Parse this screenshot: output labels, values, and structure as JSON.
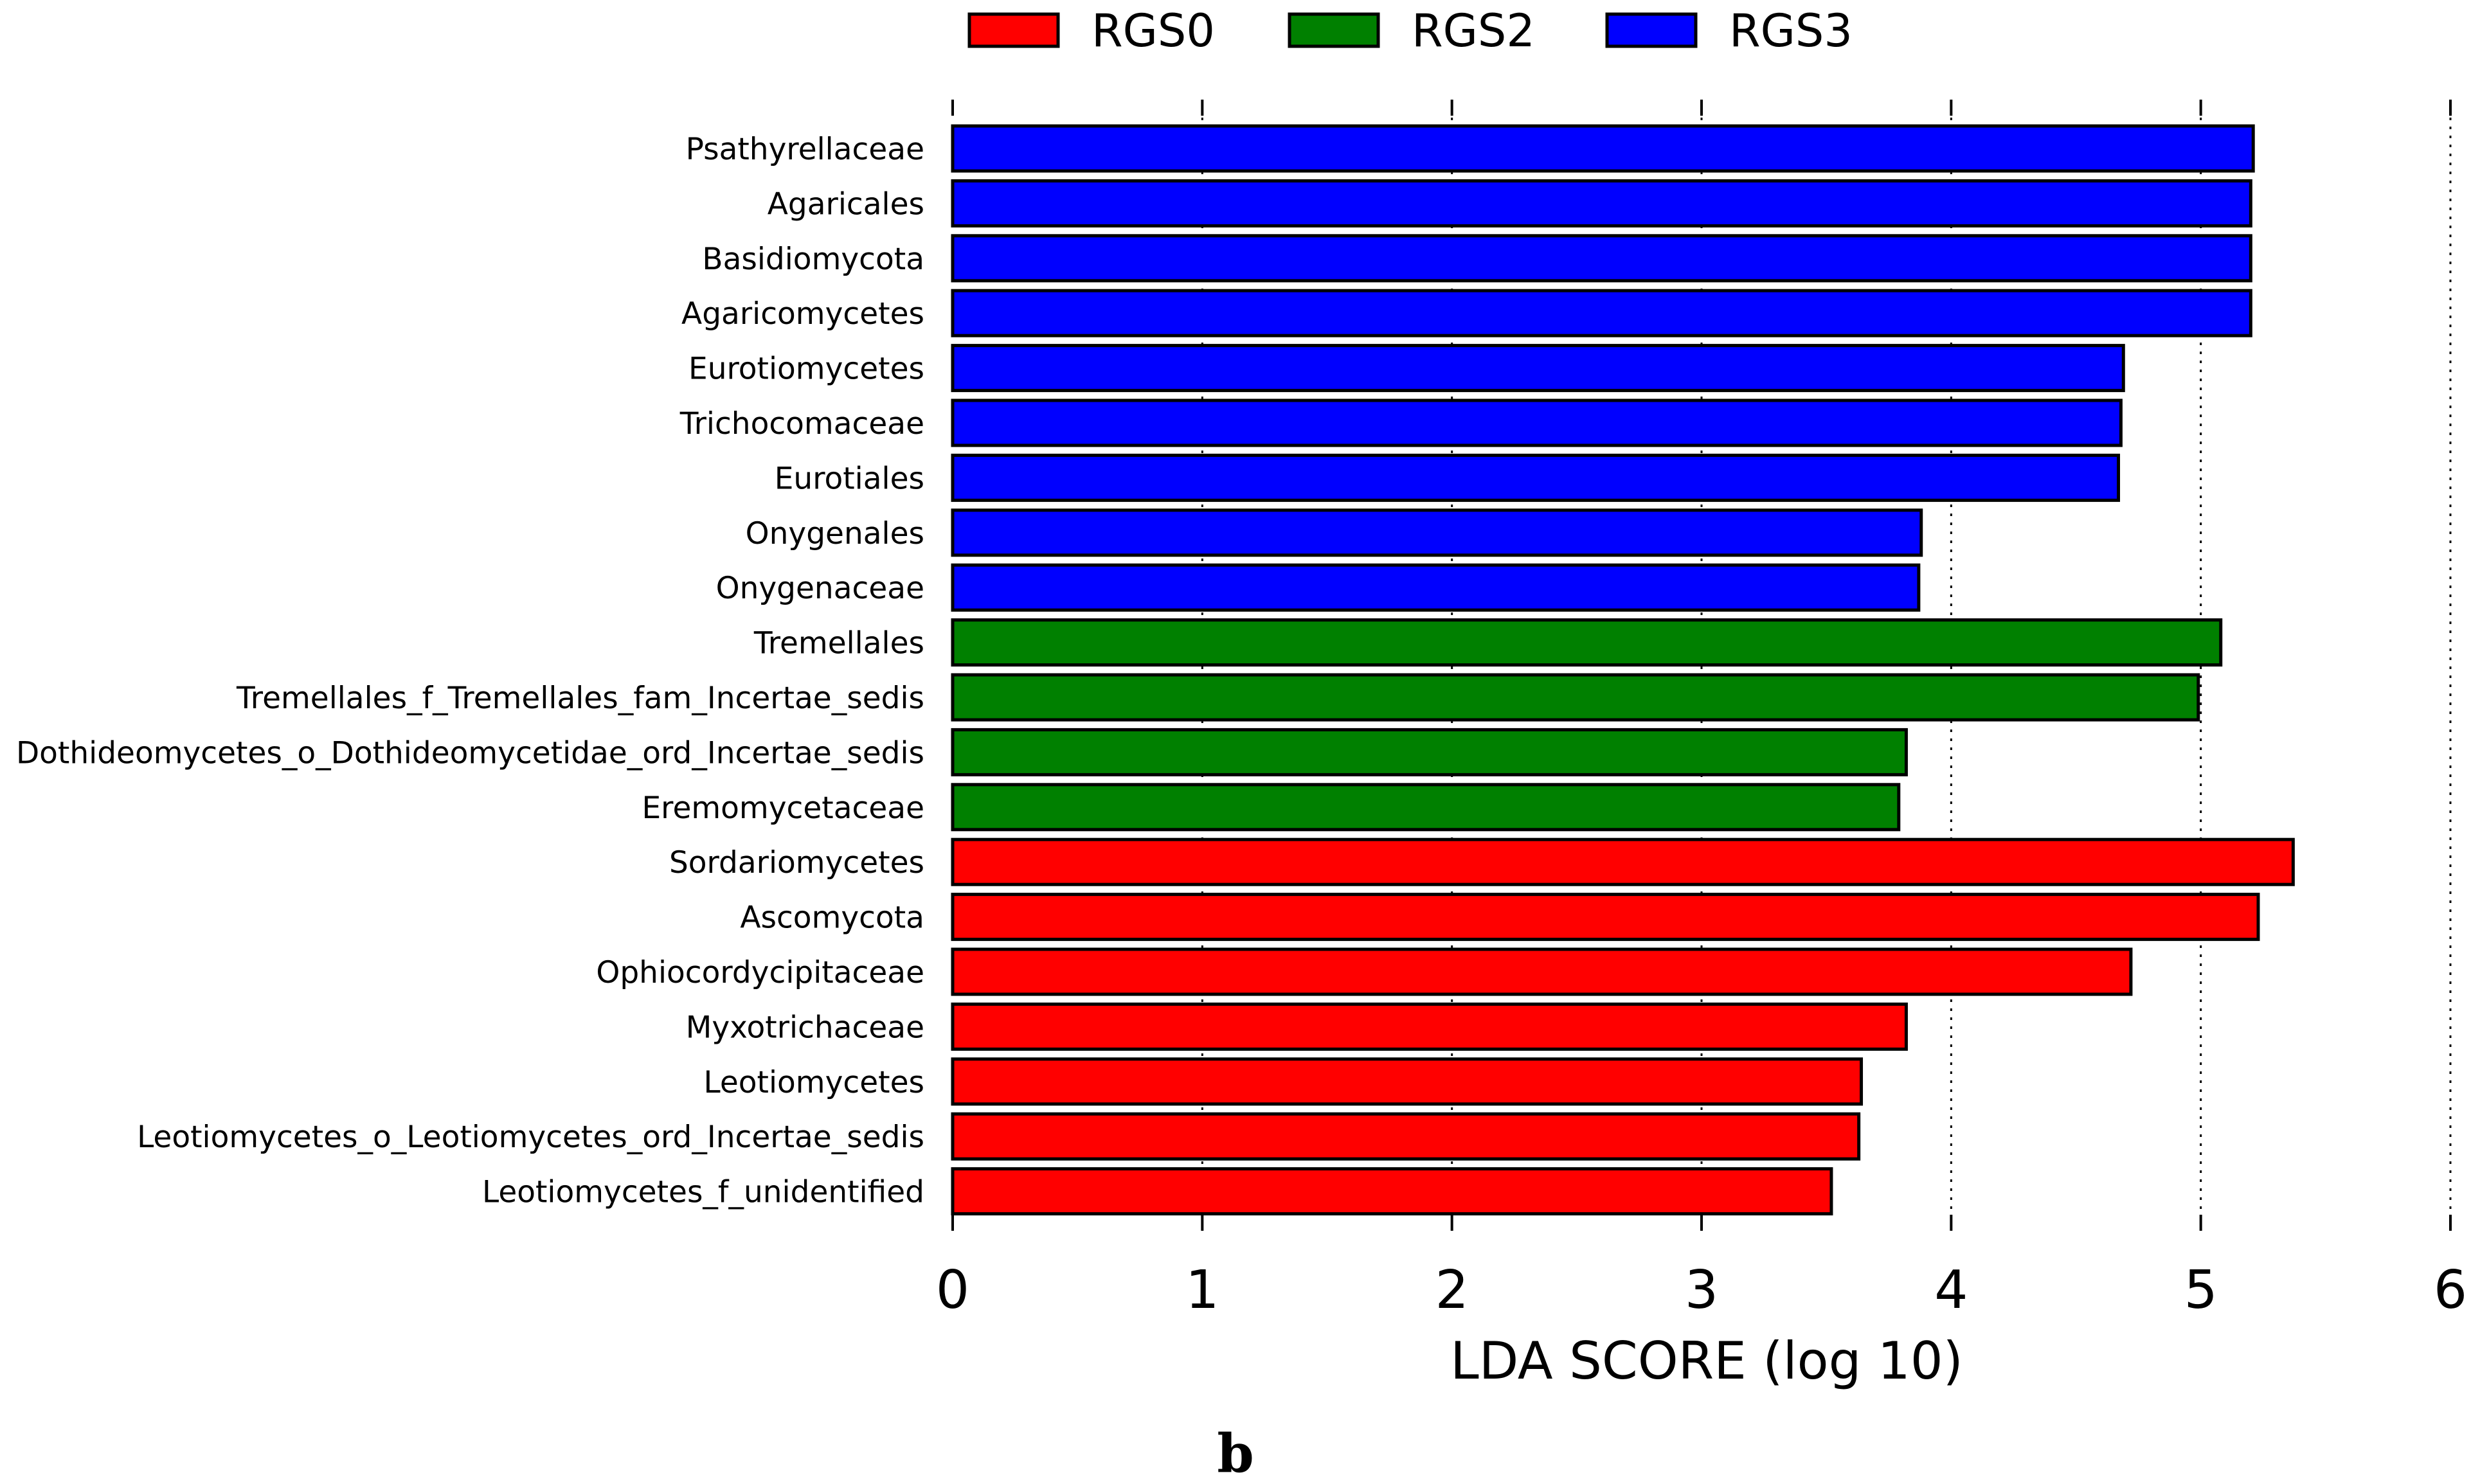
{
  "chart_data": {
    "type": "bar",
    "orientation": "horizontal",
    "categories": [
      "Psathyrellaceae",
      "Agaricales",
      "Basidiomycota",
      "Agaricomycetes",
      "Eurotiomycetes",
      "Trichocomaceae",
      "Eurotiales",
      "Onygenales",
      "Onygenaceae",
      "Tremellales",
      "Tremellales_f_Tremellales_fam_Incertae_sedis",
      "Dothideomycetes_o_Dothideomycetidae_ord_Incertae_sedis",
      "Eremomycetaceae",
      "Sordariomycetes",
      "Ascomycota",
      "Ophiocordycipitaceae",
      "Myxotrichaceae",
      "Leotiomycetes",
      "Leotiomycetes_o_Leotiomycetes_ord_Incertae_sedis",
      "Leotiomycetes_f_unidentified"
    ],
    "values": [
      5.21,
      5.2,
      5.2,
      5.2,
      4.69,
      4.68,
      4.67,
      3.88,
      3.87,
      5.08,
      4.99,
      3.82,
      3.79,
      5.37,
      5.23,
      4.72,
      3.82,
      3.64,
      3.63,
      3.52
    ],
    "groups": [
      "RGS3",
      "RGS3",
      "RGS3",
      "RGS3",
      "RGS3",
      "RGS3",
      "RGS3",
      "RGS3",
      "RGS3",
      "RGS2",
      "RGS2",
      "RGS2",
      "RGS2",
      "RGS0",
      "RGS0",
      "RGS0",
      "RGS0",
      "RGS0",
      "RGS0",
      "RGS0"
    ],
    "legend": [
      {
        "name": "RGS0",
        "color": "#ff0000"
      },
      {
        "name": "RGS2",
        "color": "#008000"
      },
      {
        "name": "RGS3",
        "color": "#0000ff"
      }
    ],
    "xlabel": "LDA SCORE (log 10)",
    "ylabel": "",
    "xlim": [
      0,
      6
    ],
    "xticks": [
      "0",
      "1",
      "2",
      "3",
      "4",
      "5",
      "6"
    ],
    "grid": "vertical dotted",
    "legend_position": "top"
  },
  "caption": "b"
}
